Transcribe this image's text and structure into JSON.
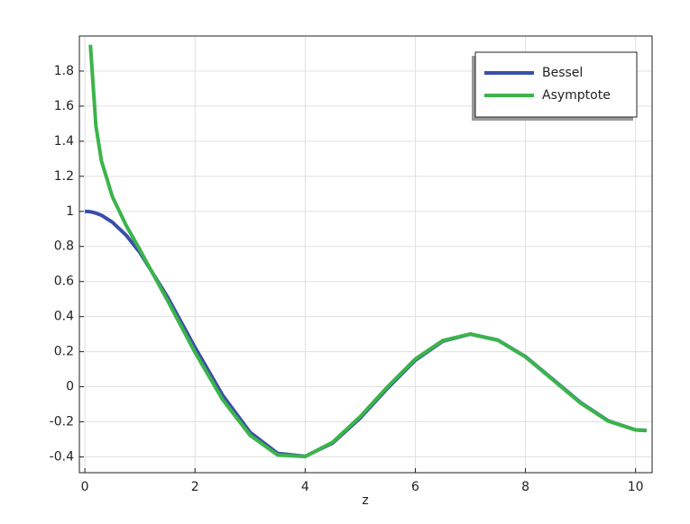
{
  "chart_data": {
    "type": "line",
    "xlabel": "z",
    "x": [
      0,
      0.1,
      0.2,
      0.3,
      0.5,
      0.75,
      1,
      1.5,
      2,
      2.5,
      3,
      3.5,
      4,
      4.5,
      5,
      5.5,
      6,
      6.5,
      7,
      7.5,
      8,
      8.5,
      9,
      9.5,
      10,
      10.2
    ],
    "series": [
      {
        "name": "Bessel",
        "color": "#3a4fa8",
        "values": [
          1,
          0.998,
          0.99,
          0.978,
          0.938,
          0.864,
          0.765,
          0.512,
          0.224,
          -0.048,
          -0.26,
          -0.38,
          -0.397,
          -0.321,
          -0.178,
          -0.007,
          0.151,
          0.26,
          0.3,
          0.266,
          0.172,
          0.042,
          -0.09,
          -0.194,
          -0.246,
          -0.249
        ]
      },
      {
        "name": "Asymptote",
        "color": "#3cb44b",
        "values": [
          null,
          1.95,
          1.488,
          1.289,
          1.083,
          0.92,
          0.78,
          0.492,
          0.196,
          -0.073,
          -0.277,
          -0.389,
          -0.398,
          -0.316,
          -0.17,
          0.001,
          0.158,
          0.264,
          0.301,
          0.265,
          0.17,
          0.039,
          -0.093,
          -0.196,
          -0.246,
          -0.25
        ]
      }
    ],
    "xlim": [
      -0.1,
      10.3
    ],
    "xticks": [
      0,
      2,
      4,
      6,
      8,
      10
    ],
    "ylim": [
      -0.49,
      2.0
    ],
    "yticks": [
      -0.4,
      -0.2,
      0,
      0.2,
      0.4,
      0.6,
      0.8,
      1,
      1.2,
      1.4,
      1.6,
      1.8
    ],
    "grid": true,
    "legend": "upper right"
  }
}
